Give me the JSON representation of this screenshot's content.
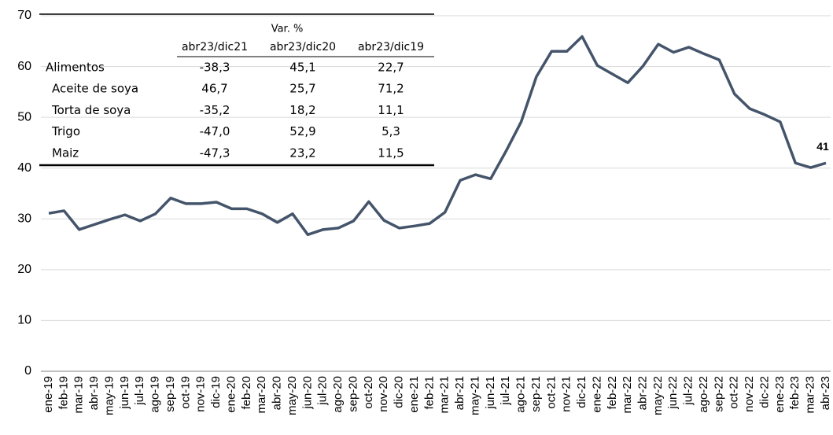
{
  "chart_data": {
    "type": "line",
    "categories": [
      "ene-19",
      "feb-19",
      "mar-19",
      "abr-19",
      "may-19",
      "jun-19",
      "jul-19",
      "ago-19",
      "sep-19",
      "oct-19",
      "nov-19",
      "dic-19",
      "ene-20",
      "feb-20",
      "mar-20",
      "abr-20",
      "may-20",
      "jun-20",
      "jul-20",
      "ago-20",
      "sep-20",
      "oct-20",
      "nov-20",
      "dic-20",
      "ene-21",
      "feb-21",
      "mar-21",
      "abr-21",
      "may-21",
      "jun-21",
      "jul-21",
      "ago-21",
      "sep-21",
      "oct-21",
      "nov-21",
      "dic-21",
      "ene-22",
      "feb-22",
      "mar-22",
      "abr-22",
      "may-22",
      "jun-22",
      "jul-22",
      "ago-22",
      "sep-22",
      "oct-22",
      "nov-22",
      "dic-22",
      "ene-23",
      "feb-23",
      "mar-23",
      "abr-23"
    ],
    "series": [
      {
        "color": "#44546a",
        "values": [
          31.1,
          31.6,
          27.9,
          28.9,
          29.9,
          30.8,
          29.6,
          31.0,
          34.1,
          33.0,
          33.0,
          33.3,
          32.0,
          32.0,
          31.0,
          29.3,
          31.0,
          26.9,
          27.9,
          28.2,
          29.6,
          33.4,
          29.7,
          28.2,
          28.6,
          29.1,
          31.3,
          37.6,
          38.7,
          37.9,
          43.3,
          49.1,
          58.0,
          63.0,
          63.0,
          65.9,
          60.2,
          58.5,
          56.8,
          60.1,
          64.4,
          62.8,
          63.8,
          62.5,
          61.3,
          54.6,
          51.7,
          50.5,
          49.1,
          41.0,
          40.1,
          41
        ]
      }
    ],
    "ylim": [
      0,
      70
    ],
    "yticks": [
      0,
      10,
      20,
      30,
      40,
      50,
      60,
      70
    ],
    "grid": true,
    "table": {
      "group_header": "Var. %",
      "columns": [
        "abr23/dic21",
        "abr23/dic20",
        "abr23/dic19"
      ],
      "rows": [
        {
          "label": "Alimentos",
          "values": [
            "-38,3",
            "45,1",
            "22,7"
          ]
        },
        {
          "label": "Aceite de soya",
          "values": [
            "46,7",
            "25,7",
            "71,2"
          ]
        },
        {
          "label": "Torta de soya",
          "values": [
            "-35,2",
            "18,2",
            "11,1"
          ]
        },
        {
          "label": "Trigo",
          "values": [
            "-47,0",
            "52,9",
            "5,3"
          ]
        },
        {
          "label": "Maiz",
          "values": [
            "-47,3",
            "23,2",
            "11,5"
          ]
        }
      ]
    }
  }
}
